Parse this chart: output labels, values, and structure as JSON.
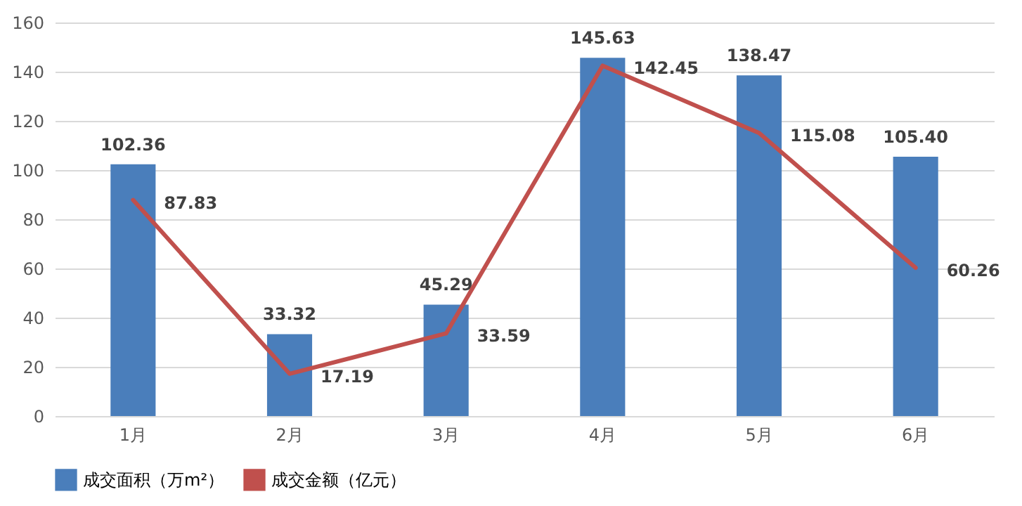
{
  "chart_data": {
    "type": "bar",
    "categories": [
      "1月",
      "2月",
      "3月",
      "4月",
      "5月",
      "6月"
    ],
    "series": [
      {
        "name": "成交面积（万m²）",
        "color": "#4a7ebb",
        "values": [
          102.36,
          33.32,
          45.29,
          145.63,
          138.47,
          105.4
        ],
        "value_labels": [
          "102.36",
          "33.32",
          "45.29",
          "145.63",
          "138.47",
          "105.40"
        ]
      },
      {
        "name": "成交金额（亿元）",
        "type": "line",
        "color": "#c0504d",
        "values": [
          87.83,
          17.19,
          33.59,
          142.45,
          115.08,
          60.26
        ],
        "value_labels": [
          "87.83",
          "17.19",
          "33.59",
          "142.45",
          "115.08",
          "60.26"
        ]
      }
    ],
    "ylim": [
      0,
      160
    ],
    "yticks": [
      0,
      20,
      40,
      60,
      80,
      100,
      120,
      140,
      160
    ],
    "grid": "y",
    "legend": "bottom",
    "data_labels": true
  }
}
